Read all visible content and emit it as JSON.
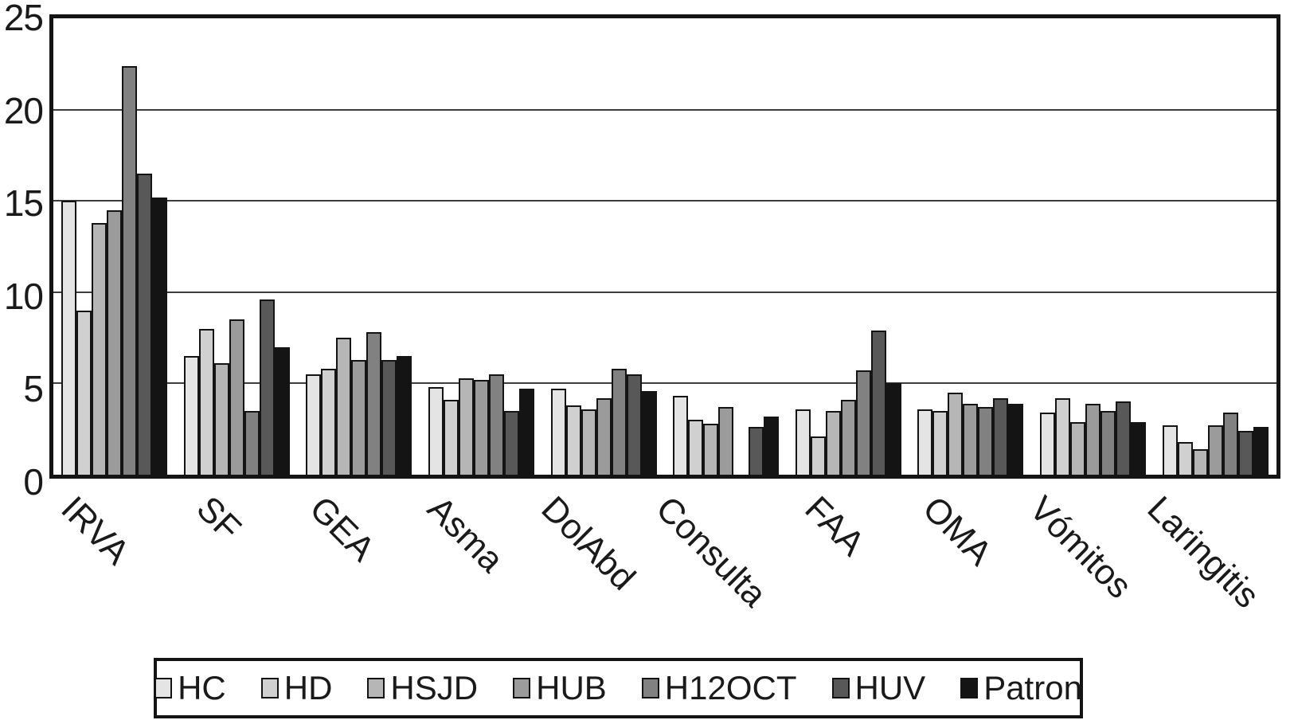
{
  "chart_data": {
    "type": "bar",
    "title": "",
    "xlabel": "",
    "ylabel": "",
    "grid": "horizontal",
    "legend_position": "bottom",
    "y_axis": {
      "min": 0,
      "max": 25,
      "ticks": [
        0,
        5,
        10,
        15,
        20,
        25
      ]
    },
    "categories": [
      "IRVA",
      "SF",
      "GEA",
      "Asma",
      "DolAbd",
      "Consulta",
      "FAA",
      "OMA",
      "Vómitos",
      "Laringitis"
    ],
    "series": [
      {
        "name": "HC",
        "color": "#e4e4e4",
        "values": [
          15.0,
          6.5,
          5.5,
          4.8,
          4.7,
          4.3,
          3.6,
          3.6,
          3.4,
          2.7
        ]
      },
      {
        "name": "HD",
        "color": "#d0d0d0",
        "values": [
          9.0,
          8.0,
          5.8,
          4.1,
          3.8,
          3.0,
          2.1,
          3.5,
          4.2,
          1.8
        ]
      },
      {
        "name": "HSJD",
        "color": "#b6b6b6",
        "values": [
          13.8,
          6.1,
          7.5,
          5.3,
          3.6,
          2.8,
          3.5,
          4.5,
          2.9,
          1.4
        ]
      },
      {
        "name": "HUB",
        "color": "#9b9b9b",
        "values": [
          14.5,
          8.5,
          6.3,
          5.2,
          4.2,
          3.7,
          4.1,
          3.9,
          3.9,
          2.7
        ]
      },
      {
        "name": "H12OCT",
        "color": "#818181",
        "values": [
          22.4,
          3.5,
          7.8,
          5.5,
          5.8,
          0,
          5.7,
          3.7,
          3.5,
          3.4
        ]
      },
      {
        "name": "HUV",
        "color": "#585858",
        "values": [
          16.5,
          9.6,
          6.3,
          3.5,
          5.5,
          2.6,
          7.9,
          4.2,
          4.0,
          2.4
        ]
      },
      {
        "name": "Patron",
        "color": "#141414",
        "values": [
          15.2,
          7.0,
          6.5,
          4.7,
          4.6,
          3.2,
          5.0,
          3.9,
          2.9,
          2.6
        ]
      }
    ]
  }
}
